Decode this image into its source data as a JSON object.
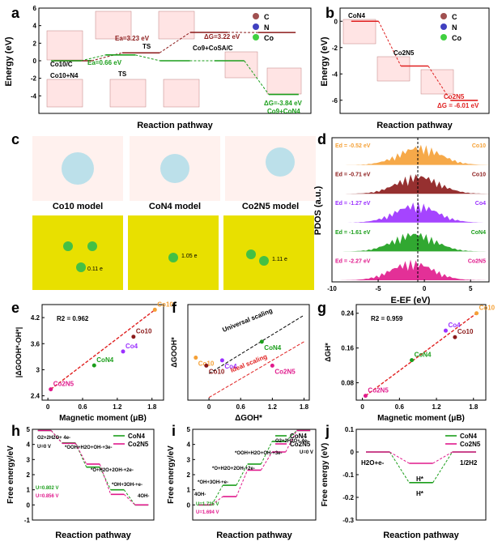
{
  "panel_letters": {
    "a": "a",
    "b": "b",
    "c": "c",
    "d": "d",
    "e": "e",
    "f": "f",
    "g": "g",
    "h": "h",
    "i": "i",
    "j": "j"
  },
  "colors": {
    "dark_red": "#8b1a1a",
    "green": "#1b9e1b",
    "magenta": "#e0198c",
    "orange": "#f5a035",
    "purple": "#9b30ff",
    "red_dash": "#e02020",
    "black": "#000000",
    "yellow_bg": "#e8e000"
  },
  "atoms_legend": [
    "C",
    "N",
    "Co"
  ],
  "model_labels": [
    "Co10 model",
    "CoN4 model",
    "Co2N5 model"
  ],
  "charge_labels": [
    "0.11 e",
    "1.05 e",
    "1.11 e"
  ],
  "chart_data": [
    {
      "id": "a",
      "type": "line",
      "ylabel": "Energy (eV)",
      "xlabel": "Reaction pathway",
      "ylim": [
        -6,
        6
      ],
      "yticks": [
        -4,
        -2,
        0,
        2,
        4,
        6
      ],
      "series": [
        {
          "name": "Co10/C pathway",
          "color": "#8b1a1a",
          "levels": [
            0.0,
            0.9,
            3.23,
            3.22
          ]
        },
        {
          "name": "Co10+N4 pathway",
          "color": "#1b9e1b",
          "levels": [
            0.0,
            0.66,
            0.0,
            0.0,
            -3.84
          ]
        }
      ],
      "annotations": [
        "Ea=3.23 eV",
        "TS",
        "ΔG=3.22 eV",
        "Co10/C",
        "Co9+CoSA/C",
        "Ea=0.66 eV",
        "TS",
        "Co10+N4",
        "ΔG=-3.84 eV",
        "Co9+CoN4"
      ]
    },
    {
      "id": "b",
      "type": "line",
      "ylabel": "Energy (eV)",
      "xlabel": "Reaction pathway",
      "ylim": [
        -7,
        1
      ],
      "yticks": [
        0,
        -2,
        -4,
        -6
      ],
      "series": [
        {
          "name": "",
          "color": "#e02020",
          "levels": [
            0.0,
            -3.4,
            -6.01
          ]
        }
      ],
      "annotations": [
        "CoN4",
        "Co2N5",
        "Co2N5",
        "ΔG = -6.01 eV"
      ]
    },
    {
      "id": "d",
      "type": "area",
      "ylabel": "PDOS (a.u.)",
      "xlabel": "E-EF (eV)",
      "xlim": [
        -10,
        7
      ],
      "xticks": [
        -10,
        -5,
        0,
        5
      ],
      "series": [
        {
          "name": "Co10",
          "color": "#f5a035",
          "ed": "Ed = -0.52 eV"
        },
        {
          "name": "Co10",
          "color": "#8b1a1a",
          "ed": "Ed = -0.71 eV"
        },
        {
          "name": "Co4",
          "color": "#9b30ff",
          "ed": "Ed = -1.27 eV"
        },
        {
          "name": "CoN4",
          "color": "#1b9e1b",
          "ed": "Ed = -1.61 eV"
        },
        {
          "name": "Co2N5",
          "color": "#e0198c",
          "ed": "Ed = -2.27 eV"
        }
      ]
    },
    {
      "id": "e",
      "type": "scatter",
      "ylabel": "|ΔGOOH*-OH*|",
      "xlabel": "Magnetic moment (μB)",
      "xlim": [
        -0.1,
        2.0
      ],
      "ylim": [
        2.3,
        4.5
      ],
      "xticks": [
        0.0,
        0.6,
        1.2,
        1.8
      ],
      "yticks": [
        2.4,
        3.0,
        3.6,
        4.2
      ],
      "r2": "R2 = 0.962",
      "points": [
        {
          "label": "Co2N5",
          "x": 0.05,
          "y": 2.55,
          "color": "#e0198c"
        },
        {
          "label": "CoN4",
          "x": 0.8,
          "y": 3.1,
          "color": "#1b9e1b"
        },
        {
          "label": "Co4",
          "x": 1.3,
          "y": 3.42,
          "color": "#9b30ff"
        },
        {
          "label": "Co10",
          "x": 1.48,
          "y": 3.76,
          "color": "#8b1a1a"
        },
        {
          "label": "Co10",
          "x": 1.85,
          "y": 4.38,
          "color": "#f5a035"
        }
      ]
    },
    {
      "id": "f",
      "type": "scatter",
      "ylabel": "ΔGOOH*",
      "xlabel": "ΔGOH*",
      "xlim": [
        -0.4,
        1.9
      ],
      "xticks": [
        0.0,
        0.6,
        1.2,
        1.8
      ],
      "lines": [
        "Universal scaling",
        "Ideal scaling"
      ],
      "points": [
        {
          "label": "Co10",
          "x": -0.25,
          "y": 3.6,
          "color": "#f5a035"
        },
        {
          "label": "Co10",
          "x": -0.05,
          "y": 3.45,
          "color": "#8b1a1a"
        },
        {
          "label": "Co4",
          "x": 0.25,
          "y": 3.55,
          "color": "#9b30ff"
        },
        {
          "label": "CoN4",
          "x": 1.0,
          "y": 3.9,
          "color": "#1b9e1b"
        },
        {
          "label": "Co2N5",
          "x": 1.2,
          "y": 3.45,
          "color": "#e0198c"
        }
      ]
    },
    {
      "id": "g",
      "type": "scatter",
      "ylabel": "ΔGH*",
      "xlabel": "Magnetic moment (μB)",
      "xlim": [
        -0.1,
        2.0
      ],
      "ylim": [
        0.04,
        0.26
      ],
      "xticks": [
        0.0,
        0.6,
        1.2,
        1.8
      ],
      "yticks": [
        0.08,
        0.16,
        0.24
      ],
      "r2": "R2 = 0.959",
      "points": [
        {
          "label": "Co2N5",
          "x": 0.05,
          "y": 0.05,
          "color": "#e0198c"
        },
        {
          "label": "CoN4",
          "x": 0.8,
          "y": 0.132,
          "color": "#1b9e1b"
        },
        {
          "label": "Co4",
          "x": 1.35,
          "y": 0.2,
          "color": "#9b30ff"
        },
        {
          "label": "Co10",
          "x": 1.5,
          "y": 0.185,
          "color": "#8b1a1a"
        },
        {
          "label": "Co10",
          "x": 1.85,
          "y": 0.24,
          "color": "#f5a035"
        }
      ]
    },
    {
      "id": "h",
      "type": "line",
      "ylabel": "Free energy/eV",
      "xlabel": "Reaction pathway",
      "ylim": [
        -1,
        5
      ],
      "yticks": [
        -1,
        0,
        1,
        2,
        3,
        4,
        5
      ],
      "series": [
        {
          "name": "CoN4",
          "color": "#1b9e1b",
          "levels": [
            4.92,
            4.1,
            2.5,
            1.0,
            0.0
          ],
          "u": "U=0.802 V"
        },
        {
          "name": "Co2N5",
          "color": "#e0198c",
          "levels": [
            4.92,
            4.07,
            2.7,
            0.7,
            0.0
          ],
          "u": "U=0.856 V"
        }
      ],
      "annotations": [
        "O2+2H2O+ 4e-",
        "*OOH+H2O+OH-+3e-",
        "U=0 V",
        "*O+H2O+2OH-+2e-",
        "*OH+3OH-+e-",
        "4OH-"
      ]
    },
    {
      "id": "i",
      "type": "line",
      "ylabel": "Free energy/eV",
      "xlabel": "Reaction pathway",
      "ylim": [
        -1,
        5
      ],
      "yticks": [
        0,
        1,
        2,
        3,
        4,
        5
      ],
      "series": [
        {
          "name": "CoN4",
          "color": "#1b9e1b",
          "levels": [
            0.0,
            1.3,
            2.7,
            4.2,
            4.92
          ],
          "u": "U=1.725 V"
        },
        {
          "name": "Co2N5",
          "color": "#e0198c",
          "levels": [
            0.0,
            0.55,
            2.3,
            3.5,
            4.92
          ],
          "u": "U=1.694 V"
        }
      ],
      "annotations": [
        "4OH-",
        "*OH+3OH-+e-",
        "*O+H2O+2OH-+2e-",
        "*OOH+H2O+OH-+3e-",
        "O2+2H2O+ 4e-",
        "U=0 V"
      ]
    },
    {
      "id": "j",
      "type": "line",
      "ylabel": "Free energy (eV)",
      "xlabel": "Reaction pathway",
      "ylim": [
        -0.3,
        0.1
      ],
      "yticks": [
        -0.3,
        -0.2,
        -0.1,
        0.0,
        0.1
      ],
      "series": [
        {
          "name": "CoN4",
          "color": "#1b9e1b",
          "levels": [
            0.0,
            -0.135,
            0.0
          ]
        },
        {
          "name": "Co2N5",
          "color": "#e0198c",
          "levels": [
            0.0,
            -0.05,
            0.0
          ]
        }
      ],
      "annotations": [
        "H2O+e-",
        "H*",
        "H*",
        "1/2H2"
      ]
    }
  ]
}
